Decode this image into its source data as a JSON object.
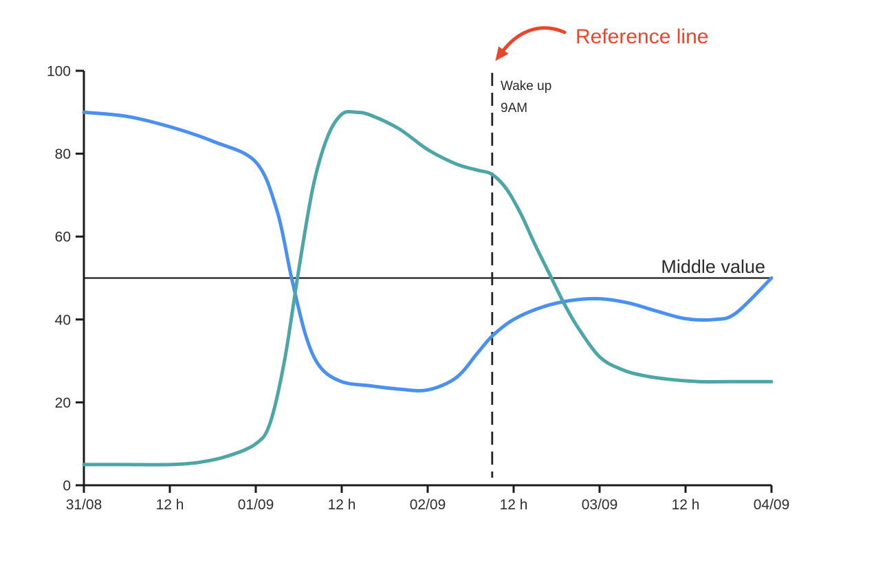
{
  "page": {
    "background": "#ffffff"
  },
  "chart_data": {
    "type": "line",
    "title": "",
    "xlabel": "",
    "ylabel": "",
    "grid": false,
    "legend": "none",
    "x_axis": {
      "unit": "hours-from-31/08-00:00",
      "range_hours": [
        0,
        96
      ],
      "tick_hours": [
        0,
        12,
        24,
        36,
        48,
        60,
        72,
        84,
        96
      ],
      "tick_labels": [
        "31/08",
        "12 h",
        "01/09",
        "12 h",
        "02/09",
        "12 h",
        "03/09",
        "12 h",
        "04/09"
      ]
    },
    "y_axis": {
      "range": [
        0,
        100
      ],
      "tick_values": [
        0,
        20,
        40,
        60,
        80,
        100
      ],
      "tick_labels": [
        "0",
        "20",
        "40",
        "60",
        "80",
        "100"
      ]
    },
    "series": [
      {
        "name": "blue-series",
        "color": "#4a90f2",
        "points": [
          [
            0,
            90
          ],
          [
            6,
            89
          ],
          [
            12,
            86.5
          ],
          [
            18,
            83
          ],
          [
            24,
            78
          ],
          [
            27,
            66
          ],
          [
            29,
            50
          ],
          [
            31,
            36
          ],
          [
            33,
            28.5
          ],
          [
            36,
            25
          ],
          [
            40,
            24
          ],
          [
            44,
            23.2
          ],
          [
            48,
            23
          ],
          [
            52,
            26
          ],
          [
            55,
            32
          ],
          [
            57,
            36
          ],
          [
            60,
            40
          ],
          [
            64,
            43
          ],
          [
            68,
            44.6
          ],
          [
            72,
            45
          ],
          [
            76,
            44
          ],
          [
            80,
            42
          ],
          [
            84,
            40.2
          ],
          [
            88,
            40
          ],
          [
            91,
            41.5
          ],
          [
            96,
            50
          ]
        ]
      },
      {
        "name": "teal-series",
        "color": "#4da6a6",
        "points": [
          [
            0,
            5
          ],
          [
            6,
            5
          ],
          [
            12,
            5
          ],
          [
            16,
            5.5
          ],
          [
            20,
            7
          ],
          [
            24,
            10
          ],
          [
            26,
            15
          ],
          [
            28,
            30
          ],
          [
            30,
            52
          ],
          [
            32,
            72
          ],
          [
            34,
            84
          ],
          [
            36,
            89.5
          ],
          [
            38,
            90
          ],
          [
            40,
            89.3
          ],
          [
            44,
            86
          ],
          [
            48,
            81
          ],
          [
            52,
            77.5
          ],
          [
            55,
            76
          ],
          [
            57,
            75
          ],
          [
            59,
            71.5
          ],
          [
            61,
            65.5
          ],
          [
            63,
            58
          ],
          [
            65,
            51
          ],
          [
            67,
            44
          ],
          [
            69,
            38
          ],
          [
            72,
            31
          ],
          [
            75,
            28
          ],
          [
            78,
            26.5
          ],
          [
            82,
            25.5
          ],
          [
            86,
            25
          ],
          [
            90,
            25
          ],
          [
            96,
            25
          ]
        ]
      }
    ],
    "reference_lines": {
      "horizontal": {
        "value": 50,
        "label": "Middle value",
        "color": "#1c1c1c"
      },
      "vertical": {
        "hour": 57,
        "time_label": "02/09 09:00",
        "style": "dashed",
        "labels": [
          "Wake up",
          "9AM"
        ],
        "color": "#222222"
      }
    },
    "annotation": {
      "label": "Reference line",
      "color": "#e8472c"
    }
  }
}
